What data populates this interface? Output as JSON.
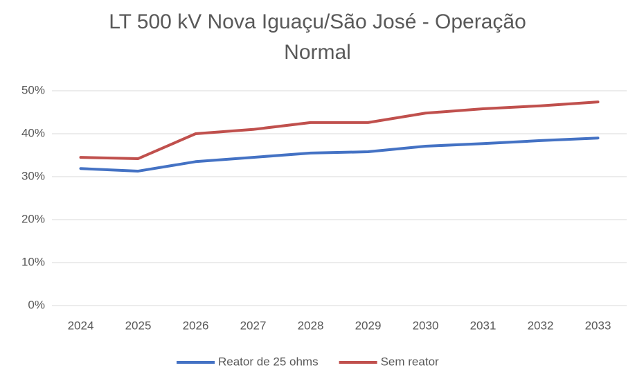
{
  "chart_data": {
    "type": "line",
    "title": "LT 500 kV Nova Iguaçu/São José - Operação Normal",
    "categories": [
      "2024",
      "2025",
      "2026",
      "2027",
      "2028",
      "2029",
      "2030",
      "2031",
      "2032",
      "2033"
    ],
    "series": [
      {
        "name": "Reator de 25 ohms",
        "color": "#4472c4",
        "values": [
          31.9,
          31.3,
          33.5,
          34.5,
          35.5,
          35.8,
          37.1,
          37.7,
          38.4,
          39.0
        ]
      },
      {
        "name": "Sem reator",
        "color": "#c0504d",
        "values": [
          34.5,
          34.2,
          40.0,
          41.0,
          42.6,
          42.6,
          44.8,
          45.8,
          46.5,
          47.4
        ]
      }
    ],
    "ylim": [
      0,
      50
    ],
    "yticks": [
      {
        "value": 0,
        "label": "0%"
      },
      {
        "value": 10,
        "label": "10%"
      },
      {
        "value": 20,
        "label": "20%"
      },
      {
        "value": 30,
        "label": "30%"
      },
      {
        "value": 40,
        "label": "40%"
      },
      {
        "value": 50,
        "label": "50%"
      }
    ],
    "grid": true,
    "legend": "bottom"
  }
}
